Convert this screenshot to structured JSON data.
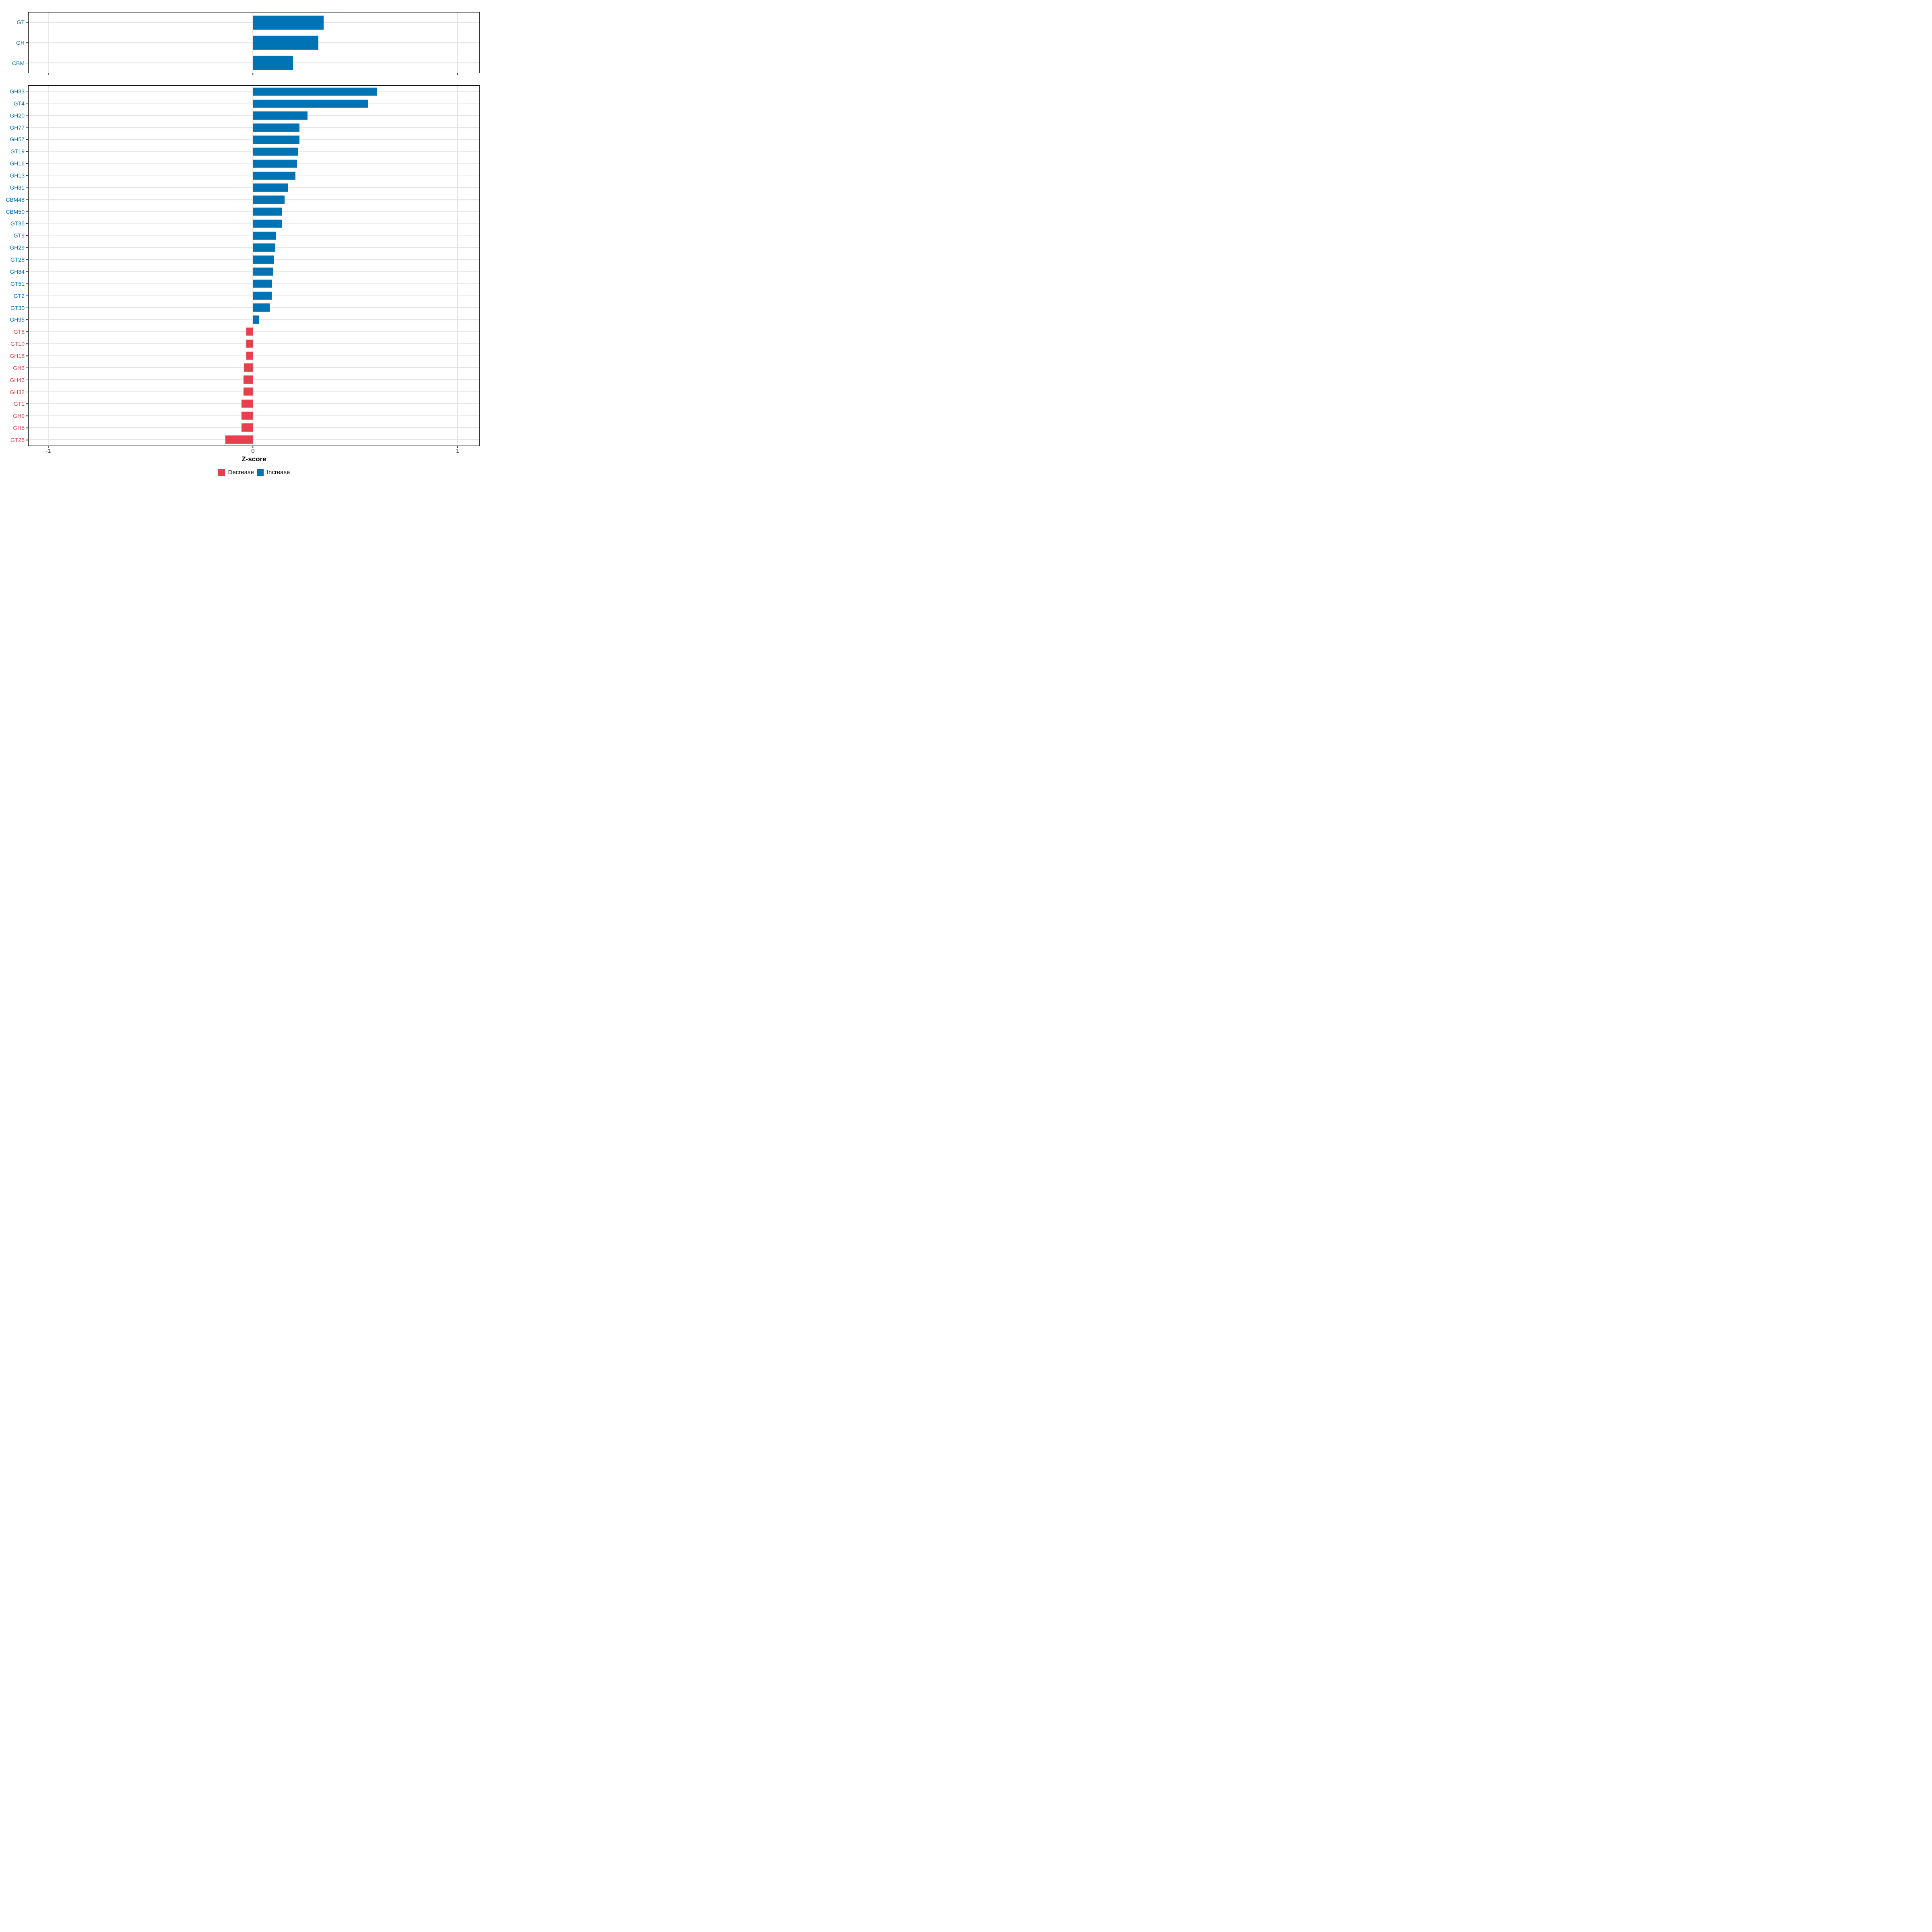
{
  "axis": {
    "xlabel": "Z-score",
    "xlim": [
      -1.098,
      1.108
    ],
    "ticks": [
      -1,
      0,
      1
    ],
    "tick_labels": [
      "-1",
      "0",
      "1"
    ],
    "grid": "major-only"
  },
  "colors": {
    "increase": "#0073B4",
    "decrease": "#E4404D",
    "gridline": "#E2E2E2",
    "panel_border": "#000000",
    "axis_tick": "#333333",
    "tick_label_text": "#404040"
  },
  "legend": {
    "decrease_label": "Decrease",
    "increase_label": "Increase",
    "position": "bottom"
  },
  "chart_data": [
    {
      "type": "bar",
      "orientation": "horizontal",
      "panel": "category-summary",
      "categories": [
        "GT",
        "GH",
        "CBM"
      ],
      "values": [
        0.345,
        0.32,
        0.197
      ],
      "directions": [
        "Increase",
        "Increase",
        "Increase"
      ]
    },
    {
      "type": "bar",
      "orientation": "horizontal",
      "panel": "cazyme-families",
      "categories": [
        "GH33",
        "GT4",
        "GH20",
        "GH77",
        "GH57",
        "GT19",
        "GH16",
        "GH13",
        "GH31",
        "CBM48",
        "CBM50",
        "GT35",
        "GT9",
        "GH29",
        "GT28",
        "GH84",
        "GT51",
        "GT2",
        "GT30",
        "GH95",
        "GT8",
        "GT10",
        "GH18",
        "GH3",
        "GH43",
        "GH32",
        "GT1",
        "GH9",
        "GH5",
        "GT26"
      ],
      "values": [
        0.605,
        0.563,
        0.267,
        0.228,
        0.227,
        0.221,
        0.215,
        0.207,
        0.172,
        0.155,
        0.143,
        0.143,
        0.111,
        0.11,
        0.103,
        0.098,
        0.094,
        0.091,
        0.081,
        0.031,
        -0.033,
        -0.033,
        -0.033,
        -0.044,
        -0.046,
        -0.046,
        -0.056,
        -0.057,
        -0.057,
        -0.135
      ],
      "directions": [
        "Increase",
        "Increase",
        "Increase",
        "Increase",
        "Increase",
        "Increase",
        "Increase",
        "Increase",
        "Increase",
        "Increase",
        "Increase",
        "Increase",
        "Increase",
        "Increase",
        "Increase",
        "Increase",
        "Increase",
        "Increase",
        "Increase",
        "Increase",
        "Decrease",
        "Decrease",
        "Decrease",
        "Decrease",
        "Decrease",
        "Decrease",
        "Decrease",
        "Decrease",
        "Decrease",
        "Decrease"
      ]
    }
  ]
}
